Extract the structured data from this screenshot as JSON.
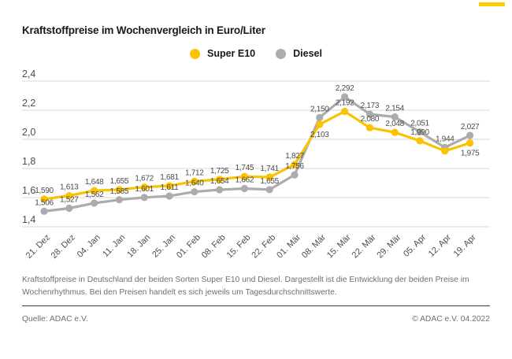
{
  "page": {
    "title": "Kraftstoffpreise im Wochenvergleich in Euro/Liter",
    "description": "Kraftstoffpreise in Deutschland der beiden Sorten Super E10 und Diesel. Dargestellt ist die Entwicklung der beiden Preise im Wochenrhythmus. Bei den Preisen handelt es sich jeweils um Tagesdurchschnittswerte.",
    "source": "Quelle: ADAC e.V.",
    "copyright": "© ADAC e.V. 04.2022"
  },
  "colors": {
    "super_e10": "#FCC200",
    "diesel": "#ACACAC",
    "value_label": "#4a4a4a",
    "axis_label": "#4d4d4d",
    "grid": "#d9d9d9",
    "accent_dash": "#FFCC00"
  },
  "legend": {
    "items": [
      {
        "label": "Super E10",
        "color": "#FCC200"
      },
      {
        "label": "Diesel",
        "color": "#ACACAC"
      }
    ]
  },
  "chart_data": {
    "type": "line",
    "title": "Kraftstoffpreise im Wochenvergleich in Euro/Liter",
    "ylabel": "Euro/Liter",
    "ylim": [
      1.4,
      2.4
    ],
    "grid": true,
    "legend_position": "top-center",
    "yticks": [
      {
        "label": "2,4",
        "value": 2.4
      },
      {
        "label": "2,2",
        "value": 2.2
      },
      {
        "label": "2,0",
        "value": 2.0
      },
      {
        "label": "1,8",
        "value": 1.8
      },
      {
        "label": "1,6",
        "value": 1.6
      },
      {
        "label": "1,4",
        "value": 1.4
      }
    ],
    "categories": [
      "21. Dez",
      "28. Dez",
      "04. Jan",
      "11. Jan",
      "18. Jan",
      "25. Jan",
      "01. Feb",
      "08. Feb",
      "15. Feb",
      "22. Feb",
      "01. Mär",
      "08. Mär",
      "15. Mär",
      "22. Mär",
      "29. Mär",
      "05. Apr",
      "12. Apr",
      "19. Apr"
    ],
    "series": [
      {
        "name": "Diesel",
        "color": "#ACACAC",
        "values": [
          1.506,
          1.527,
          1.562,
          1.585,
          1.601,
          1.611,
          1.64,
          1.654,
          1.662,
          1.655,
          1.756,
          2.15,
          2.292,
          2.173,
          2.154,
          2.051,
          1.944,
          2.027
        ],
        "labels": [
          "1,506",
          "1,527",
          "1,562",
          "1,585",
          "1,601",
          "1,611",
          "1,640",
          "1,654",
          "1,662",
          "1,655",
          "1,756",
          "2,150",
          "2,292",
          "2,173",
          "2,154",
          "2,051",
          "1,944",
          "2,027"
        ],
        "label_pos": [
          "above",
          "above",
          "above",
          "above",
          "above",
          "above",
          "above",
          "above",
          "above",
          "above",
          "above",
          "above",
          "above",
          "above",
          "above",
          "above",
          "above",
          "above"
        ]
      },
      {
        "name": "Super E10",
        "color": "#FCC200",
        "values": [
          1.59,
          1.613,
          1.648,
          1.655,
          1.672,
          1.681,
          1.712,
          1.725,
          1.745,
          1.741,
          1.827,
          2.103,
          2.192,
          2.08,
          2.048,
          1.99,
          1.92,
          1.975
        ],
        "labels": [
          "1,590",
          "1,613",
          "1,648",
          "1,655",
          "1,672",
          "1,681",
          "1,712",
          "1,725",
          "1,745",
          "1,741",
          "1,827",
          "2,103",
          "2,192",
          "2,080",
          "2,048",
          "1,990",
          "",
          "1,975"
        ],
        "label_pos": [
          "above",
          "above",
          "above",
          "above",
          "above",
          "above",
          "above",
          "above",
          "above",
          "above",
          "above",
          "below",
          "above",
          "above",
          "above",
          "above",
          "above",
          "below"
        ]
      }
    ]
  }
}
